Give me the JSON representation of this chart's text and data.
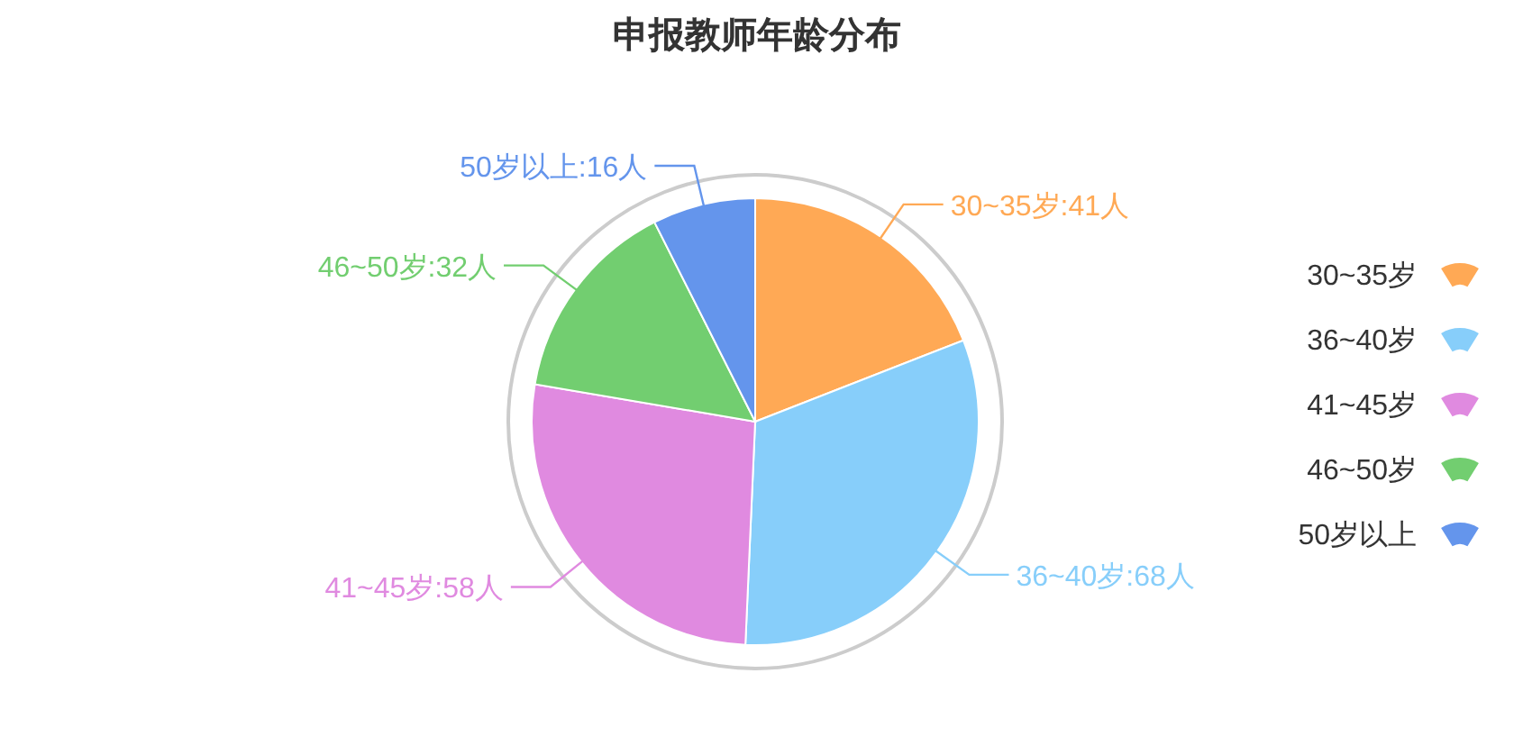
{
  "chart_data": {
    "type": "pie",
    "title": "申报教师年龄分布",
    "categories": [
      "30~35岁",
      "36~40岁",
      "41~45岁",
      "46~50岁",
      "50岁以上"
    ],
    "values": [
      41,
      68,
      58,
      32,
      16
    ],
    "colors": [
      "#ffa955",
      "#87cefa",
      "#e08ae0",
      "#72ce70",
      "#6495ec"
    ],
    "value_labels": [
      "30~35岁:41人",
      "36~40岁:68人",
      "41~45岁:58人",
      "46~50岁:32人",
      "50岁以上:16人"
    ],
    "legend": "right"
  }
}
